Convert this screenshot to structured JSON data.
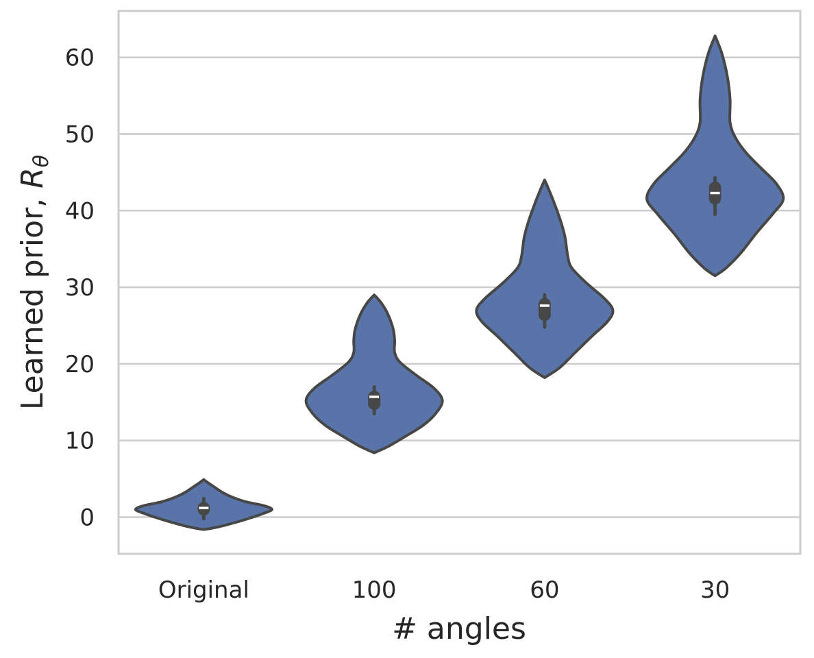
{
  "chart_data": {
    "type": "violin",
    "categories": [
      "Original",
      "100",
      "60",
      "30"
    ],
    "xlabel": "# angles",
    "ylabel": "Learned prior, ",
    "ylabel_symbol": "R",
    "ylabel_subscript": "θ",
    "ylim": [
      -4.7,
      66.2
    ],
    "yticks": [
      0,
      10,
      20,
      30,
      40,
      50,
      60
    ],
    "grid": "horizontal",
    "fill_color": "#5874a8",
    "edge_color": "#474747",
    "median_color": "#ffffff",
    "series": [
      {
        "category": "Original",
        "min": -1.6,
        "max": 4.9,
        "q1": 0.2,
        "median": 1.2,
        "q3": 2.0,
        "whisker_low": -0.2,
        "whisker_high": 2.4,
        "density": [
          [
            -1.6,
            0.02
          ],
          [
            -1.2,
            0.25
          ],
          [
            -0.6,
            0.5
          ],
          [
            0.0,
            0.72
          ],
          [
            0.5,
            0.88
          ],
          [
            1.0,
            1.0
          ],
          [
            1.5,
            0.88
          ],
          [
            2.0,
            0.62
          ],
          [
            2.6,
            0.42
          ],
          [
            3.2,
            0.28
          ],
          [
            3.9,
            0.16
          ],
          [
            4.5,
            0.06
          ],
          [
            4.9,
            0.0
          ]
        ]
      },
      {
        "category": "100",
        "min": 8.4,
        "max": 29.0,
        "q1": 14.0,
        "median": 15.7,
        "q3": 16.5,
        "whisker_low": 13.5,
        "whisker_high": 17.0,
        "density": [
          [
            8.4,
            0.0
          ],
          [
            9.2,
            0.2
          ],
          [
            10.5,
            0.45
          ],
          [
            12.0,
            0.72
          ],
          [
            13.5,
            0.9
          ],
          [
            15.2,
            1.0
          ],
          [
            16.8,
            0.88
          ],
          [
            18.5,
            0.62
          ],
          [
            20.2,
            0.38
          ],
          [
            21.5,
            0.3
          ],
          [
            23.0,
            0.3
          ],
          [
            24.5,
            0.28
          ],
          [
            26.5,
            0.2
          ],
          [
            28.0,
            0.1
          ],
          [
            29.0,
            0.0
          ]
        ]
      },
      {
        "category": "60",
        "min": 18.2,
        "max": 44.0,
        "q1": 25.6,
        "median": 27.6,
        "q3": 28.6,
        "whisker_low": 24.8,
        "whisker_high": 29.0,
        "density": [
          [
            18.2,
            0.0
          ],
          [
            19.5,
            0.22
          ],
          [
            21.5,
            0.45
          ],
          [
            23.5,
            0.68
          ],
          [
            25.5,
            0.92
          ],
          [
            27.0,
            1.0
          ],
          [
            28.5,
            0.88
          ],
          [
            30.5,
            0.62
          ],
          [
            32.5,
            0.4
          ],
          [
            34.0,
            0.34
          ],
          [
            36.5,
            0.3
          ],
          [
            38.5,
            0.24
          ],
          [
            41.0,
            0.14
          ],
          [
            43.0,
            0.05
          ],
          [
            44.0,
            0.0
          ]
        ]
      },
      {
        "category": "30",
        "min": 31.5,
        "max": 62.8,
        "q1": 40.8,
        "median": 42.3,
        "q3": 43.8,
        "whisker_low": 39.5,
        "whisker_high": 44.3,
        "density": [
          [
            31.5,
            0.0
          ],
          [
            32.5,
            0.16
          ],
          [
            34.5,
            0.38
          ],
          [
            37.0,
            0.6
          ],
          [
            39.5,
            0.84
          ],
          [
            41.5,
            1.0
          ],
          [
            43.5,
            0.9
          ],
          [
            45.5,
            0.68
          ],
          [
            47.5,
            0.46
          ],
          [
            49.5,
            0.3
          ],
          [
            51.5,
            0.22
          ],
          [
            54.5,
            0.22
          ],
          [
            57.5,
            0.18
          ],
          [
            60.5,
            0.1
          ],
          [
            62.8,
            0.0
          ]
        ]
      }
    ]
  }
}
